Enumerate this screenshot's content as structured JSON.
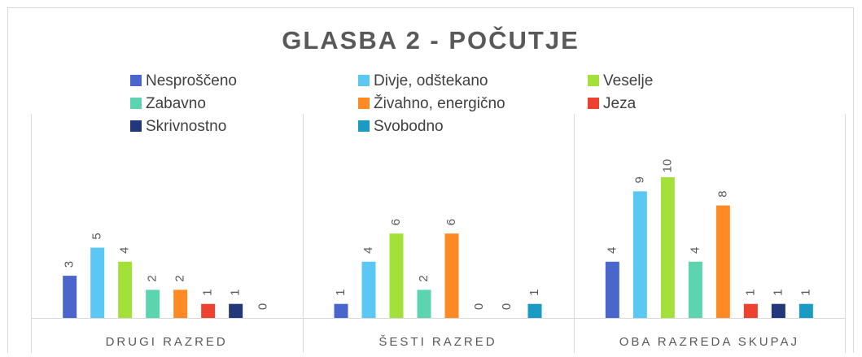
{
  "chart_data": {
    "type": "bar",
    "title": "GLASBA 2 - POČUTJE",
    "categories": [
      "DRUGI RAZRED",
      "ŠESTI RAZRED",
      "OBA RAZREDA SKUPAJ"
    ],
    "series": [
      {
        "name": "Nesproščeno",
        "color": "#4a66cc",
        "values": [
          3,
          1,
          4
        ]
      },
      {
        "name": "Divje, odštekano",
        "color": "#5ac8f2",
        "values": [
          5,
          4,
          9
        ]
      },
      {
        "name": "Veselje",
        "color": "#a3e03a",
        "values": [
          4,
          6,
          10
        ]
      },
      {
        "name": "Zabavno",
        "color": "#5cd4b0",
        "values": [
          2,
          2,
          4
        ]
      },
      {
        "name": "Živahno, energično",
        "color": "#ff8a24",
        "values": [
          2,
          6,
          8
        ]
      },
      {
        "name": "Jeza",
        "color": "#ee4231",
        "values": [
          1,
          0,
          1
        ]
      },
      {
        "name": "Skrivnostno",
        "color": "#22387a",
        "values": [
          1,
          0,
          1
        ]
      },
      {
        "name": "Svobodno",
        "color": "#1a9bc4",
        "values": [
          0,
          1,
          1
        ]
      }
    ]
  }
}
